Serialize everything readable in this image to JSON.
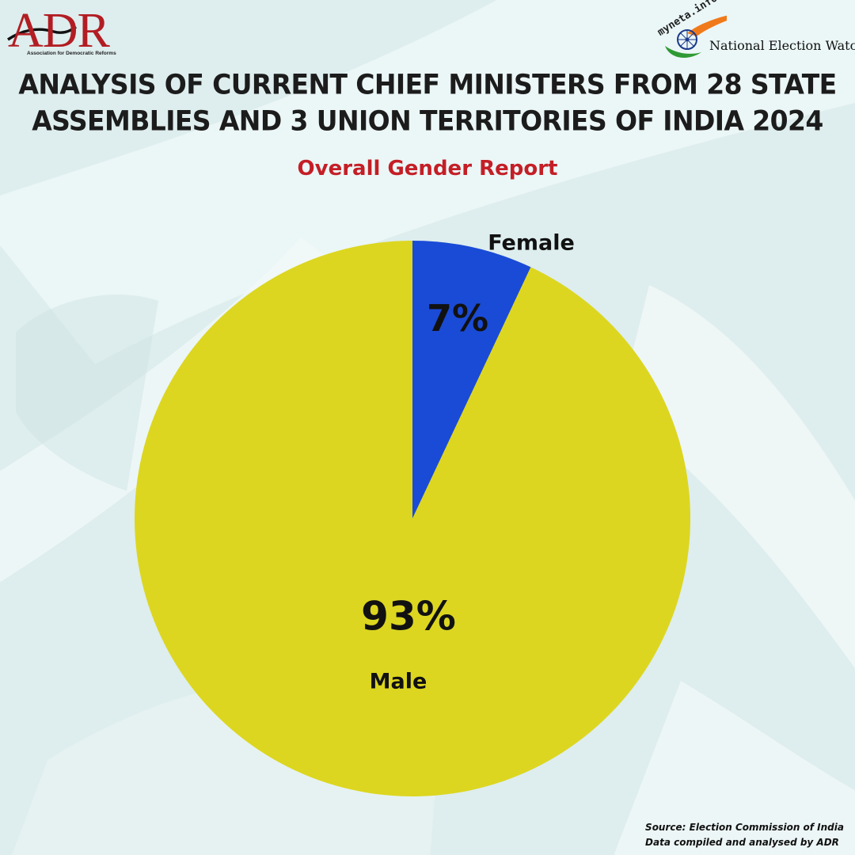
{
  "header": {
    "adr_logo": {
      "text": "ADR",
      "subtitle": "Association for Democratic Reforms",
      "color": "#b21d23"
    },
    "new_logo": {
      "myneta": "myneta.info",
      "name": "National Election Watch",
      "colors": [
        "#f07a1a",
        "#2f9a35",
        "#1a3a8c"
      ]
    }
  },
  "title_line1": "ANALYSIS OF CURRENT CHIEF MINISTERS FROM 28 STATE",
  "title_line2": "ASSEMBLIES AND 3 UNION TERRITORIES OF INDIA 2024",
  "subtitle": "Overall Gender Report",
  "chart_data": {
    "type": "pie",
    "title": "Overall Gender Report",
    "slices": [
      {
        "label": "Female",
        "value": 7,
        "display": "7%",
        "color": "#1a4bd6"
      },
      {
        "label": "Male",
        "value": 93,
        "display": "93%",
        "color": "#dcd620"
      }
    ],
    "start_angle": "12 o'clock",
    "direction": "clockwise",
    "legend": "none (labels placed at slices)"
  },
  "footer": {
    "source_line1": "Source: Election Commission of India",
    "source_line2": "Data compiled and analysed by ADR"
  },
  "colors": {
    "background": "#dfeeee",
    "title": "#1c1c1c",
    "subtitle": "#c41e26"
  }
}
